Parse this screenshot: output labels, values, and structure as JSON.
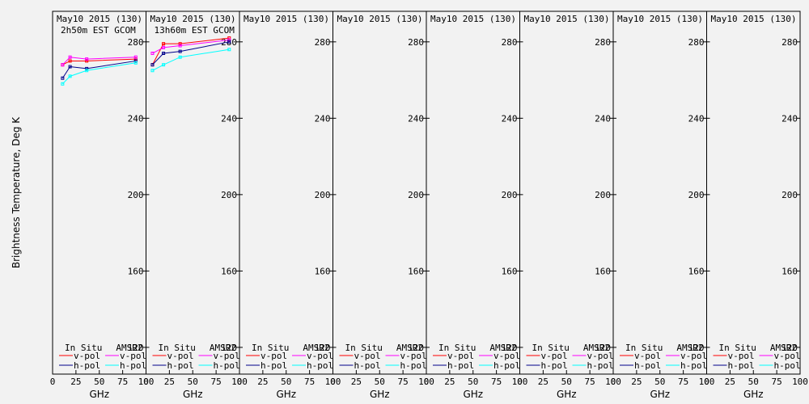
{
  "chart_data": {
    "type": "line",
    "ylabel": "Brightness Temperature, Deg K",
    "xlabel": "GHz",
    "xlim": [
      0,
      100
    ],
    "ylim": [
      106,
      296
    ],
    "xticks": [
      0,
      25,
      50,
      75,
      100
    ],
    "yticks": [
      120,
      160,
      200,
      240,
      280
    ],
    "colors": {
      "insitu_v": "#ff0000",
      "insitu_h": "#00008b",
      "amsr2_v": "#ff00ff",
      "amsr2_h": "#00ffff"
    },
    "legend": {
      "group1": "In Situ",
      "group2": "AMSR2",
      "v": "v-pol",
      "h": "h-pol"
    },
    "panels": [
      {
        "title": "May10 2015 (130)",
        "subtitle": "2h50m EST GCOM",
        "series": [
          {
            "key": "insitu_v",
            "x": [
              10.7,
              18.7,
              36.5,
              89.0
            ],
            "y": [
              268,
              270,
              270,
              271
            ]
          },
          {
            "key": "amsr2_v",
            "x": [
              10.7,
              18.7,
              36.5,
              89.0
            ],
            "y": [
              268,
              272,
              271,
              272
            ]
          },
          {
            "key": "insitu_h",
            "x": [
              10.7,
              18.7,
              36.5,
              89.0
            ],
            "y": [
              261,
              267,
              266,
              270
            ]
          },
          {
            "key": "amsr2_h",
            "x": [
              10.7,
              18.7,
              36.5,
              89.0
            ],
            "y": [
              258,
              262,
              265,
              269
            ]
          }
        ]
      },
      {
        "title": "May10 2015 (130)",
        "subtitle": "13h60m EST GCOM",
        "series": [
          {
            "key": "insitu_v",
            "x": [
              6.9,
              18.7,
              36.5,
              89.0
            ],
            "y": [
              268,
              279,
              279,
              282
            ]
          },
          {
            "key": "amsr2_v",
            "x": [
              6.9,
              18.7,
              36.5,
              89.0
            ],
            "y": [
              274,
              277,
              278,
              281
            ]
          },
          {
            "key": "insitu_h",
            "x": [
              6.9,
              18.7,
              36.5,
              89.0
            ],
            "y": [
              268,
              274,
              275,
              280
            ]
          },
          {
            "key": "amsr2_h",
            "x": [
              6.9,
              18.7,
              36.5,
              89.0
            ],
            "y": [
              265,
              268,
              272,
              276
            ]
          }
        ]
      },
      {
        "title": "May10 2015 (130)",
        "subtitle": "",
        "series": []
      },
      {
        "title": "May10 2015 (130)",
        "subtitle": "",
        "series": []
      },
      {
        "title": "May10 2015 (130)",
        "subtitle": "",
        "series": []
      },
      {
        "title": "May10 2015 (130)",
        "subtitle": "",
        "series": []
      },
      {
        "title": "May10 2015 (130)",
        "subtitle": "",
        "series": []
      },
      {
        "title": "May10 2015 (130)",
        "subtitle": "",
        "series": []
      }
    ]
  }
}
